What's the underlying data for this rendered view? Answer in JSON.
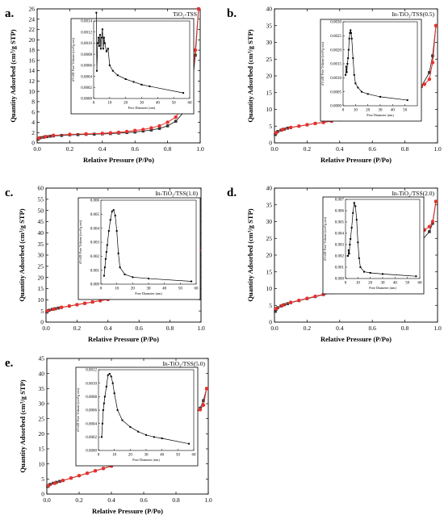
{
  "chart_data": [
    {
      "type": "line",
      "panel": "a.",
      "title": "TiO₂-TSS",
      "xlabel": "Relative Pressure (P/Po)",
      "ylabel": "Quantity Adsorbed (cm³/g STP)",
      "xlim": [
        0,
        1.0
      ],
      "ylim": [
        0,
        26
      ],
      "xticks": [
        "0.0",
        "0.2",
        "0.4",
        "0.6",
        "0.8",
        "1.0"
      ],
      "yticks": [
        "0",
        "2",
        "4",
        "6",
        "8",
        "10",
        "12",
        "14",
        "16",
        "18",
        "20",
        "22",
        "24",
        "26"
      ],
      "colors": {
        "adsorption": "#333333",
        "desorption": "#e8312e"
      },
      "series": [
        {
          "values_x": [
            0.005,
            0.01,
            0.02,
            0.04,
            0.06,
            0.08,
            0.1,
            0.15,
            0.2,
            0.25,
            0.3,
            0.35,
            0.4,
            0.45,
            0.5,
            0.55,
            0.6,
            0.65,
            0.7,
            0.75,
            0.8,
            0.85,
            0.9,
            0.95,
            0.97,
            0.99
          ],
          "values_y": [
            0.7,
            0.9,
            1.0,
            1.1,
            1.2,
            1.3,
            1.35,
            1.45,
            1.55,
            1.6,
            1.65,
            1.7,
            1.75,
            1.8,
            1.9,
            2.0,
            2.1,
            2.3,
            2.5,
            2.8,
            3.3,
            4.2,
            6.0,
            11.0,
            17.0,
            26.0
          ]
        },
        {
          "values_x": [
            0.99,
            0.97,
            0.95,
            0.93,
            0.9,
            0.87,
            0.85,
            0.8,
            0.75,
            0.7,
            0.65,
            0.6,
            0.55,
            0.5,
            0.45,
            0.4,
            0.3,
            0.2,
            0.1,
            0.05,
            0.01
          ],
          "values_y": [
            26.0,
            18.0,
            12.0,
            9.5,
            7.8,
            6.0,
            5.0,
            4.0,
            3.3,
            2.9,
            2.6,
            2.4,
            2.2,
            2.05,
            1.95,
            1.85,
            1.75,
            1.65,
            1.45,
            1.2,
            0.9
          ]
        }
      ],
      "inset": {
        "xlabel": "Pore Diameter (nm)",
        "ylabel": "dV/dD Pore Volume (cm³/g nm)",
        "xlim": [
          0,
          60
        ],
        "ylim": [
          0,
          0.0014
        ],
        "xticks": [
          "0",
          "10",
          "20",
          "30",
          "40",
          "50",
          "60"
        ],
        "yticks": [
          "0.0000",
          "0.0002",
          "0.0004",
          "0.0006",
          "0.0008",
          "0.0010",
          "0.0012",
          "0.0014"
        ],
        "x": [
          1.7,
          2.0,
          2.5,
          3.0,
          3.5,
          4.0,
          4.5,
          5.0,
          5.5,
          6.0,
          6.5,
          7.0,
          8.0,
          9.0,
          10,
          12,
          15,
          20,
          25,
          30,
          35,
          56
        ],
        "y": [
          0.00155,
          0.0005,
          0.001,
          0.0011,
          0.00095,
          0.00115,
          0.0009,
          0.0011,
          0.00125,
          0.0009,
          0.0011,
          0.001,
          0.00085,
          0.0009,
          0.0006,
          0.0005,
          0.00042,
          0.00035,
          0.0003,
          0.00025,
          0.00022,
          0.0001
        ]
      }
    },
    {
      "type": "line",
      "panel": "b.",
      "title": "In-TiO₂/TSS(0.5)",
      "xlabel": "Relative Pressure (P/Po)",
      "ylabel": "Quantity Adsorbed (cm³/g STP)",
      "xlim": [
        0,
        1.0
      ],
      "ylim": [
        0,
        40
      ],
      "xticks": [
        "0.0",
        "0.2",
        "0.4",
        "0.6",
        "0.8",
        "1.0"
      ],
      "yticks": [
        "0",
        "5",
        "10",
        "15",
        "20",
        "25",
        "30",
        "35",
        "40"
      ],
      "colors": {
        "adsorption": "#333333",
        "desorption": "#e8312e"
      },
      "series": [
        {
          "values_x": [
            0.005,
            0.01,
            0.02,
            0.04,
            0.06,
            0.08,
            0.1,
            0.15,
            0.2,
            0.25,
            0.3,
            0.35,
            0.4,
            0.45,
            0.5,
            0.55,
            0.6,
            0.65,
            0.7,
            0.75,
            0.8,
            0.85,
            0.9,
            0.95,
            0.97,
            0.99
          ],
          "values_y": [
            2.5,
            3.0,
            3.4,
            3.8,
            4.1,
            4.4,
            4.6,
            5.0,
            5.4,
            5.8,
            6.1,
            6.5,
            6.9,
            7.3,
            7.8,
            8.3,
            8.9,
            9.6,
            10.5,
            11.6,
            12.9,
            14.5,
            16.8,
            21.0,
            26.0,
            35.0
          ]
        },
        {
          "values_x": [
            0.99,
            0.97,
            0.95,
            0.92,
            0.9,
            0.85,
            0.8,
            0.75,
            0.7,
            0.65,
            0.6,
            0.55,
            0.5,
            0.45,
            0.44,
            0.43,
            0.4,
            0.35,
            0.3,
            0.25,
            0.2,
            0.15,
            0.1,
            0.05,
            0.01
          ],
          "values_y": [
            35.0,
            24.0,
            19.0,
            17.5,
            16.9,
            15.9,
            15.1,
            14.3,
            13.7,
            13.0,
            12.4,
            11.8,
            11.2,
            10.5,
            9.8,
            7.2,
            6.9,
            6.5,
            6.1,
            5.8,
            5.4,
            5.0,
            4.6,
            4.0,
            3.0
          ]
        }
      ],
      "inset": {
        "xlabel": "Pore Diameter (nm)",
        "ylabel": "dV/dD Pore Volume (cm³/g nm)",
        "xlim": [
          0,
          60
        ],
        "ylim": [
          0,
          0.003
        ],
        "xticks": [
          "0",
          "10",
          "20",
          "30",
          "40",
          "50"
        ],
        "yticks": [
          "0.0000",
          "0.0005",
          "0.0010",
          "0.0015",
          "0.0020",
          "0.0025",
          "0.0030"
        ],
        "x": [
          2.0,
          2.5,
          3.0,
          3.5,
          4.0,
          4.5,
          5.0,
          5.5,
          6.0,
          6.5,
          7.0,
          8.0,
          9.0,
          10,
          12,
          15,
          20,
          30,
          52
        ],
        "y": [
          0.0011,
          0.0014,
          0.0012,
          0.0015,
          0.0017,
          0.002,
          0.0024,
          0.0026,
          0.0027,
          0.0026,
          0.0024,
          0.0017,
          0.0011,
          0.0008,
          0.00065,
          0.0005,
          0.00042,
          0.00032,
          0.0002
        ]
      }
    },
    {
      "type": "line",
      "panel": "c.",
      "title": "In-TiO₂/TSS(1.0)",
      "xlabel": "Relative Pressure (P/Po)",
      "ylabel": "Quantity Adsorbed (cm³/g STP)",
      "xlim": [
        0,
        1.0
      ],
      "ylim": [
        0,
        60
      ],
      "xticks": [
        "0.0",
        "0.2",
        "0.4",
        "0.6",
        "0.8",
        "1.0"
      ],
      "yticks": [
        "0",
        "5",
        "10",
        "15",
        "20",
        "25",
        "30",
        "35",
        "40",
        "45",
        "50",
        "55",
        "60"
      ],
      "colors": {
        "adsorption": "#333333",
        "desorption": "#e8312e"
      },
      "series": [
        {
          "values_x": [
            0.005,
            0.01,
            0.02,
            0.04,
            0.06,
            0.08,
            0.1,
            0.15,
            0.2,
            0.25,
            0.3,
            0.35,
            0.4,
            0.45,
            0.5,
            0.55,
            0.6,
            0.65,
            0.7,
            0.75,
            0.8,
            0.85,
            0.9,
            0.95,
            0.97,
            0.99
          ],
          "values_y": [
            4.5,
            5.0,
            5.3,
            5.7,
            6.0,
            6.3,
            6.6,
            7.2,
            7.8,
            8.4,
            9.0,
            9.6,
            10.2,
            11.0,
            11.8,
            12.7,
            13.8,
            15.0,
            16.8,
            18.8,
            21.2,
            23.5,
            25.8,
            28.0,
            29.5,
            32.0
          ]
        },
        {
          "values_x": [
            0.99,
            0.97,
            0.95,
            0.92,
            0.9,
            0.85,
            0.8,
            0.75,
            0.7,
            0.65,
            0.6,
            0.55,
            0.5,
            0.45,
            0.44,
            0.43,
            0.4,
            0.35,
            0.3,
            0.25,
            0.2,
            0.15,
            0.1,
            0.05,
            0.01
          ],
          "values_y": [
            32.0,
            29.5,
            28.5,
            27.8,
            27.3,
            26.4,
            25.6,
            24.9,
            24.3,
            23.7,
            23.1,
            22.6,
            22.0,
            21.3,
            19.5,
            11.0,
            10.2,
            9.6,
            9.0,
            8.4,
            7.8,
            7.2,
            6.6,
            5.8,
            5.0
          ]
        }
      ],
      "inset": {
        "xlabel": "Pore Diameter (nm)",
        "ylabel": "dV/dD Pore Volume (cm³/g nm)",
        "xlim": [
          0,
          60
        ],
        "ylim": [
          0,
          0.006
        ],
        "xticks": [
          "0",
          "10",
          "20",
          "30",
          "40",
          "50",
          "60"
        ],
        "yticks": [
          "0.000",
          "0.001",
          "0.002",
          "0.003",
          "0.004",
          "0.005",
          "0.006"
        ],
        "x": [
          2.0,
          2.5,
          3.0,
          3.5,
          4.0,
          5.0,
          6.0,
          7.0,
          8.0,
          9.0,
          10,
          11,
          12,
          15,
          20,
          30,
          57
        ],
        "y": [
          0.0006,
          0.0012,
          0.0018,
          0.0023,
          0.0028,
          0.0038,
          0.0046,
          0.0052,
          0.0053,
          0.0049,
          0.0038,
          0.0022,
          0.0012,
          0.0007,
          0.0005,
          0.0004,
          0.0002
        ]
      }
    },
    {
      "type": "line",
      "panel": "d.",
      "title": "In-TiO₂/TSS(2.0)",
      "xlabel": "Relative Pressure (P/Po)",
      "ylabel": "Quantity Adsorbed (cm³/g STP)",
      "xlim": [
        0,
        1.0
      ],
      "ylim": [
        0,
        40
      ],
      "xticks": [
        "0.0",
        "0.2",
        "0.4",
        "0.6",
        "0.8",
        "1.0"
      ],
      "yticks": [
        "0",
        "5",
        "10",
        "15",
        "20",
        "25",
        "30",
        "35",
        "40"
      ],
      "colors": {
        "adsorption": "#333333",
        "desorption": "#e8312e"
      },
      "series": [
        {
          "values_x": [
            0.005,
            0.01,
            0.02,
            0.04,
            0.06,
            0.08,
            0.1,
            0.15,
            0.2,
            0.25,
            0.3,
            0.35,
            0.4,
            0.45,
            0.5,
            0.55,
            0.6,
            0.65,
            0.7,
            0.75,
            0.8,
            0.85,
            0.9,
            0.95,
            0.97,
            0.99
          ],
          "values_y": [
            3.2,
            3.8,
            4.3,
            4.8,
            5.2,
            5.5,
            5.8,
            6.4,
            7.0,
            7.6,
            8.2,
            8.8,
            9.5,
            10.3,
            11.5,
            13.2,
            15.2,
            17.0,
            18.6,
            20.0,
            21.3,
            22.6,
            24.2,
            27.0,
            29.5,
            36.0
          ]
        },
        {
          "values_x": [
            0.99,
            0.97,
            0.95,
            0.92,
            0.9,
            0.85,
            0.8,
            0.75,
            0.7,
            0.65,
            0.6,
            0.55,
            0.5,
            0.45,
            0.44,
            0.43,
            0.4,
            0.35,
            0.3,
            0.25,
            0.2,
            0.15,
            0.1,
            0.05,
            0.01
          ],
          "values_y": [
            36.0,
            30.0,
            28.5,
            27.5,
            26.8,
            25.7,
            24.8,
            24.0,
            23.3,
            22.6,
            21.9,
            21.2,
            20.5,
            19.7,
            18.5,
            10.2,
            9.6,
            8.9,
            8.3,
            7.7,
            7.1,
            6.5,
            5.9,
            5.0,
            4.0
          ]
        }
      ],
      "inset": {
        "xlabel": "Pore Diameter (nm)",
        "ylabel": "dV/dD Pore Volume (cm³/g nm)",
        "xlim": [
          0,
          60
        ],
        "ylim": [
          0,
          0.007
        ],
        "xticks": [
          "0",
          "10",
          "20",
          "30",
          "40",
          "50",
          "60"
        ],
        "yticks": [
          "0.000",
          "0.001",
          "0.002",
          "0.003",
          "0.004",
          "0.005",
          "0.006",
          "0.007"
        ],
        "x": [
          2.0,
          2.5,
          3.0,
          3.5,
          4.0,
          5.0,
          6.0,
          7.0,
          8.0,
          9.0,
          10,
          11,
          12,
          15,
          20,
          30,
          57
        ],
        "y": [
          0.002,
          0.0025,
          0.0022,
          0.003,
          0.0035,
          0.0045,
          0.0058,
          0.0067,
          0.0064,
          0.0052,
          0.0032,
          0.0018,
          0.001,
          0.0006,
          0.0005,
          0.0004,
          0.0002
        ]
      }
    },
    {
      "type": "line",
      "panel": "e.",
      "title": "In-TiO₂/TSS(5.0)",
      "xlabel": "Relative Pressure (P/Po)",
      "ylabel": "Quantity Adsorbed (cm³/g STP)",
      "xlim": [
        0,
        1.0
      ],
      "ylim": [
        0,
        45
      ],
      "xticks": [
        "0.0",
        "0.2",
        "0.4",
        "0.6",
        "0.8",
        "1.0"
      ],
      "yticks": [
        "0",
        "5",
        "10",
        "15",
        "20",
        "25",
        "30",
        "35",
        "40",
        "45"
      ],
      "colors": {
        "adsorption": "#333333",
        "desorption": "#e8312e"
      },
      "series": [
        {
          "values_x": [
            0.005,
            0.01,
            0.02,
            0.04,
            0.06,
            0.08,
            0.1,
            0.15,
            0.2,
            0.25,
            0.3,
            0.35,
            0.4,
            0.45,
            0.5,
            0.55,
            0.6,
            0.65,
            0.7,
            0.75,
            0.8,
            0.85,
            0.9,
            0.95,
            0.97,
            0.99
          ],
          "values_y": [
            2.5,
            2.8,
            3.2,
            3.6,
            3.9,
            4.2,
            4.5,
            5.3,
            6.1,
            6.9,
            7.7,
            8.5,
            9.3,
            10.2,
            11.3,
            12.8,
            14.8,
            17.0,
            19.3,
            21.2,
            22.6,
            24.0,
            25.6,
            28.5,
            31.0,
            35.0
          ]
        },
        {
          "values_x": [
            0.99,
            0.97,
            0.95,
            0.92,
            0.9,
            0.85,
            0.8,
            0.75,
            0.7,
            0.65,
            0.6,
            0.55,
            0.5,
            0.46,
            0.45,
            0.44,
            0.4,
            0.35,
            0.3,
            0.25,
            0.2,
            0.15,
            0.1,
            0.05,
            0.01
          ],
          "values_y": [
            35.0,
            29.5,
            28.0,
            27.0,
            26.3,
            25.2,
            24.3,
            23.5,
            22.8,
            22.0,
            21.3,
            20.6,
            19.9,
            19.3,
            18.3,
            10.0,
            9.3,
            8.5,
            7.7,
            6.9,
            6.1,
            5.3,
            4.5,
            3.6,
            2.8
          ]
        }
      ],
      "inset": {
        "xlabel": "Pore Diameter (nm)",
        "ylabel": "dV/dD Pore Volume (cm³/g nm)",
        "xlim": [
          0,
          60
        ],
        "ylim": [
          0,
          0.0012
        ],
        "xticks": [
          "0",
          "10",
          "20",
          "30",
          "40",
          "50",
          "60"
        ],
        "yticks": [
          "0.0000",
          "0.0002",
          "0.0004",
          "0.0006",
          "0.0008",
          "0.0010",
          "0.0012"
        ],
        "x": [
          2.0,
          2.5,
          3.0,
          3.5,
          4.0,
          5.0,
          6.0,
          7.0,
          8.0,
          9.0,
          10,
          12,
          15,
          20,
          25,
          30,
          35,
          40,
          57
        ],
        "y": [
          0.0002,
          0.0004,
          0.0006,
          0.0007,
          0.0008,
          0.00095,
          0.00112,
          0.00114,
          0.0011,
          0.001,
          0.00085,
          0.0006,
          0.00045,
          0.00035,
          0.00028,
          0.00023,
          0.0002,
          0.00018,
          0.0001
        ]
      }
    }
  ]
}
